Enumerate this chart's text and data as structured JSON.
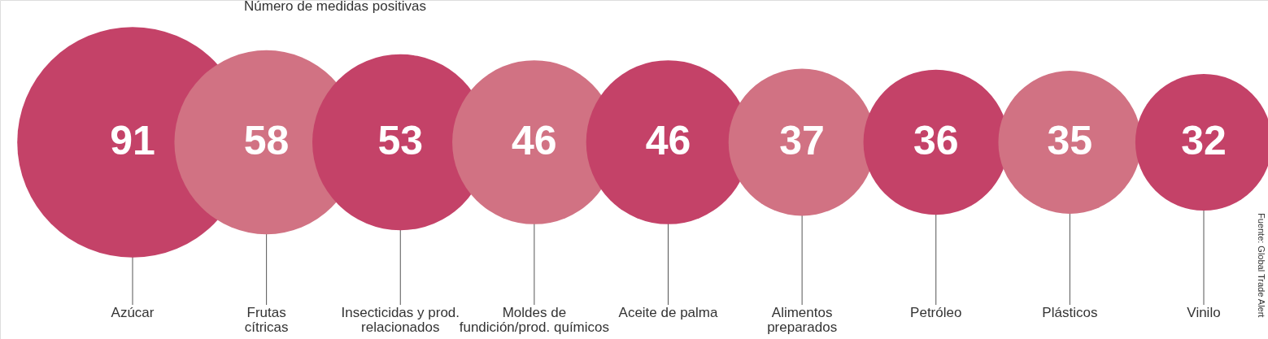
{
  "chart_data": {
    "type": "other",
    "subtitle": "Número de medidas positivas",
    "categories": [
      "Azúcar",
      "Frutas\ncítricas",
      "Insecticidas y prod.\nrelacionados",
      "Moldes de\nfundición/prod. químicos",
      "Aceite de palma",
      "Alimentos\npreparados",
      "Petróleo",
      "Plásticos",
      "Vinilo"
    ],
    "values": [
      91,
      58,
      53,
      46,
      46,
      37,
      36,
      35,
      32
    ],
    "colors": [
      "#c44268",
      "#d17283",
      "#c44268",
      "#d17283",
      "#c44268",
      "#d17283",
      "#c44268",
      "#d17283",
      "#c44268"
    ],
    "data_labels": true,
    "annotations": [
      "Fuente: Global Trade Alert"
    ]
  }
}
